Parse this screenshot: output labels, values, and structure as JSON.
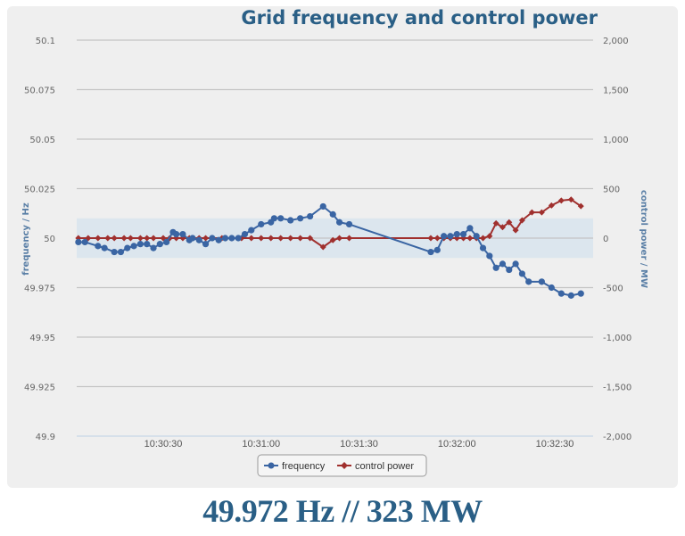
{
  "chart_data": {
    "type": "line",
    "title": "Grid frequency and control power",
    "xlabel": "",
    "ylabel": "frequency / Hz",
    "y2label": "control power / MW",
    "x_ticks": [
      "10:30:30",
      "10:31:00",
      "10:31:30",
      "10:32:00",
      "10:32:30"
    ],
    "y_ticks": [
      "50.1",
      "50.075",
      "50.05",
      "50.025",
      "50",
      "49.975",
      "49.95",
      "49.925",
      "49.9"
    ],
    "y2_ticks": [
      "2,000",
      "1,500",
      "1,000",
      "500",
      "0",
      "-500",
      "-1,000",
      "-1,500",
      "-2,000"
    ],
    "ylim": [
      49.9,
      50.1
    ],
    "y2lim": [
      -2000,
      2000
    ],
    "plot_band": {
      "from": 49.99,
      "to": 50.01,
      "color": "#dce6ee"
    },
    "grid": true,
    "legend_position": "bottom-center",
    "series": [
      {
        "name": "frequency",
        "color": "#3a65a3",
        "axis": "left",
        "marker": "circle",
        "x": [
          "10:30:04",
          "10:30:06",
          "10:30:10",
          "10:30:12",
          "10:30:15",
          "10:30:17",
          "10:30:19",
          "10:30:21",
          "10:30:23",
          "10:30:25",
          "10:30:27",
          "10:30:29",
          "10:30:31",
          "10:30:33",
          "10:30:34",
          "10:30:36",
          "10:30:38",
          "10:30:39",
          "10:30:41",
          "10:30:43",
          "10:30:45",
          "10:30:47",
          "10:30:49",
          "10:30:51",
          "10:30:53",
          "10:30:55",
          "10:30:57",
          "10:31:00",
          "10:31:03",
          "10:31:04",
          "10:31:06",
          "10:31:09",
          "10:31:12",
          "10:31:15",
          "10:31:19",
          "10:31:22",
          "10:31:24",
          "10:31:27",
          "10:31:52",
          "10:31:54",
          "10:31:56",
          "10:31:58",
          "10:32:00",
          "10:32:02",
          "10:32:04",
          "10:32:06",
          "10:32:08",
          "10:32:10",
          "10:32:12",
          "10:32:14",
          "10:32:16",
          "10:32:18",
          "10:32:20",
          "10:32:22",
          "10:32:26",
          "10:32:29",
          "10:32:32",
          "10:32:35",
          "10:32:38"
        ],
        "values": [
          49.998,
          49.998,
          49.996,
          49.995,
          49.993,
          49.993,
          49.995,
          49.996,
          49.997,
          49.997,
          49.995,
          49.997,
          49.998,
          50.003,
          50.002,
          50.002,
          49.999,
          50.0,
          49.999,
          49.997,
          50.0,
          49.999,
          50.0,
          50.0,
          50.0,
          50.002,
          50.004,
          50.007,
          50.008,
          50.01,
          50.01,
          50.009,
          50.01,
          50.011,
          50.016,
          50.012,
          50.008,
          50.007,
          49.993,
          49.994,
          50.001,
          50.001,
          50.002,
          50.002,
          50.005,
          50.001,
          49.995,
          49.991,
          49.985,
          49.987,
          49.984,
          49.987,
          49.982,
          49.978,
          49.978,
          49.975,
          49.972,
          49.971,
          49.972
        ]
      },
      {
        "name": "control power",
        "color": "#a0302e",
        "axis": "right",
        "marker": "diamond",
        "x": [
          "10:30:04",
          "10:30:07",
          "10:30:10",
          "10:30:13",
          "10:30:15",
          "10:30:18",
          "10:30:20",
          "10:30:23",
          "10:30:25",
          "10:30:27",
          "10:30:30",
          "10:30:32",
          "10:30:34",
          "10:30:36",
          "10:30:38",
          "10:30:41",
          "10:30:43",
          "10:30:45",
          "10:30:48",
          "10:30:51",
          "10:30:54",
          "10:30:57",
          "10:31:00",
          "10:31:03",
          "10:31:06",
          "10:31:09",
          "10:31:12",
          "10:31:15",
          "10:31:19",
          "10:31:22",
          "10:31:24",
          "10:31:27",
          "10:31:52",
          "10:31:54",
          "10:31:56",
          "10:31:58",
          "10:32:00",
          "10:32:02",
          "10:32:04",
          "10:32:06",
          "10:32:08",
          "10:32:10",
          "10:32:12",
          "10:32:14",
          "10:32:16",
          "10:32:18",
          "10:32:20",
          "10:32:23",
          "10:32:26",
          "10:32:29",
          "10:32:32",
          "10:32:35",
          "10:32:38"
        ],
        "values": [
          0,
          0,
          0,
          0,
          0,
          0,
          0,
          0,
          0,
          0,
          0,
          0,
          0,
          0,
          0,
          0,
          0,
          0,
          0,
          0,
          0,
          0,
          0,
          0,
          0,
          0,
          0,
          0,
          -90,
          -20,
          0,
          0,
          0,
          0,
          0,
          0,
          0,
          0,
          0,
          0,
          0,
          20,
          150,
          110,
          160,
          80,
          180,
          260,
          260,
          330,
          380,
          390,
          323
        ]
      }
    ]
  },
  "header": {
    "title": "Grid frequency and control power"
  },
  "axes": {
    "left_label": "frequency / Hz",
    "right_label": "control power / MW"
  },
  "legend": {
    "items": [
      {
        "label": "frequency",
        "color": "#3a65a3"
      },
      {
        "label": "control power",
        "color": "#a0302e"
      }
    ]
  },
  "readout": {
    "text": "49.972 Hz // 323 MW",
    "frequency": "49.972 Hz",
    "power": "323 MW"
  },
  "colors": {
    "title": "#2a5f86",
    "panel": "#efefef",
    "band": "#dce6ee",
    "grid": "#c8c8c8"
  }
}
